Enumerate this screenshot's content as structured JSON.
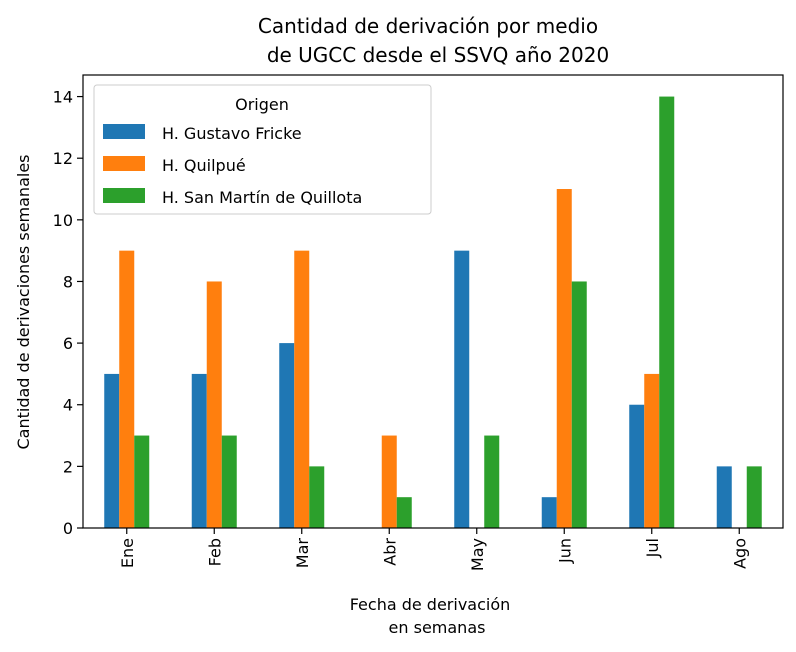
{
  "chart_data": {
    "type": "bar",
    "title_line1": "Cantidad de derivación por medio",
    "title_line2": "de UGCC desde el SSVQ año 2020",
    "xlabel_line1": "Fecha de derivación",
    "xlabel_line2": "en semanas",
    "ylabel": "Cantidad de derivaciones semanales",
    "categories": [
      "Ene",
      "Feb",
      "Mar",
      "Abr",
      "May",
      "Jun",
      "Jul",
      "Ago"
    ],
    "ylim": [
      0,
      14.7
    ],
    "yticks": [
      0,
      2,
      4,
      6,
      8,
      10,
      12,
      14
    ],
    "grid": false,
    "legend": {
      "title": "Origen",
      "placement": "top-left"
    },
    "series": [
      {
        "name": "H. Gustavo Fricke",
        "color": "#1f77b4",
        "values": [
          5,
          5,
          6,
          0,
          9,
          1,
          4,
          2
        ]
      },
      {
        "name": "H. Quilpué",
        "color": "#ff7f0e",
        "values": [
          9,
          8,
          9,
          3,
          0,
          11,
          5,
          0
        ]
      },
      {
        "name": "H. San Martín de Quillota",
        "color": "#2ca02c",
        "values": [
          3,
          3,
          2,
          1,
          3,
          8,
          14,
          2
        ]
      }
    ]
  }
}
